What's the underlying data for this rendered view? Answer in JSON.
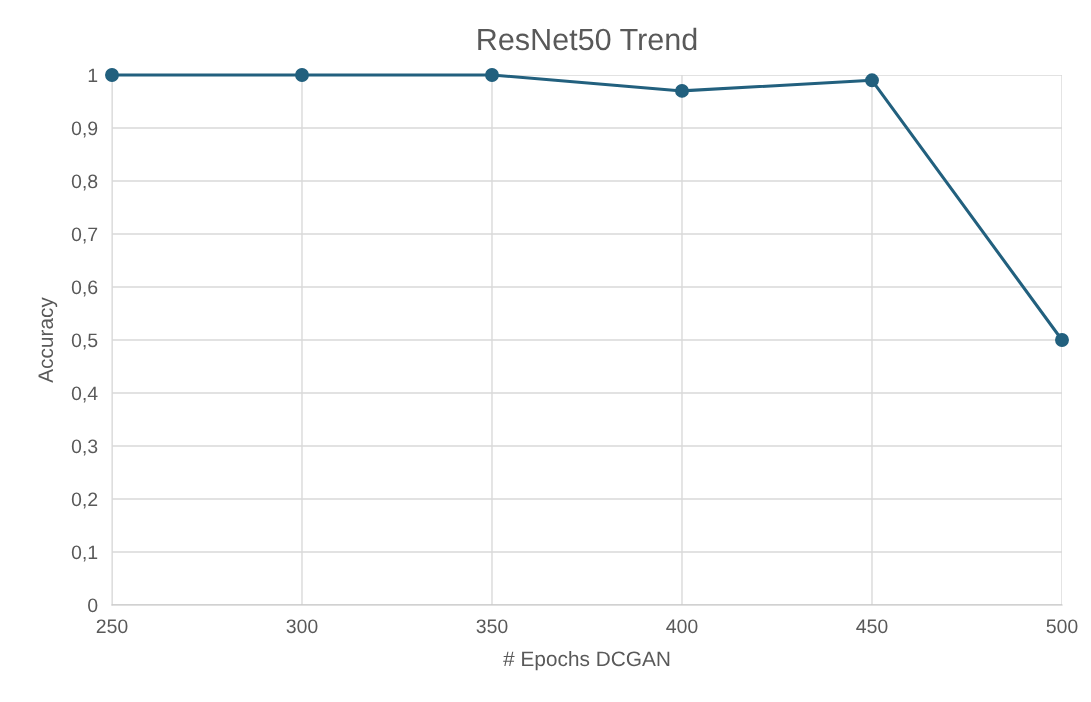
{
  "chart_data": {
    "type": "line",
    "title": "ResNet50 Trend",
    "xlabel": "# Epochs DCGAN",
    "ylabel": "Accuracy",
    "x": [
      250,
      300,
      350,
      400,
      450,
      500
    ],
    "series": [
      {
        "color": "#22607e",
        "values": [
          1,
          1,
          1,
          0.97,
          0.99,
          0.5
        ]
      }
    ],
    "xlim": [
      250,
      500
    ],
    "xticks": [
      250,
      300,
      350,
      400,
      450,
      500
    ],
    "ylim": [
      0,
      1
    ],
    "yticks": [
      0,
      {
        "value": 0.1,
        "label": "0,1"
      },
      {
        "value": 0.2,
        "label": "0,2"
      },
      {
        "value": 0.3,
        "label": "0,3"
      },
      {
        "value": 0.4,
        "label": "0,4"
      },
      {
        "value": 0.5,
        "label": "0,5"
      },
      {
        "value": 0.6,
        "label": "0,6"
      },
      {
        "value": 0.7,
        "label": "0,7"
      },
      {
        "value": 0.8,
        "label": "0,8"
      },
      {
        "value": 0.9,
        "label": "0,9"
      },
      1
    ],
    "grid": true,
    "marker": "circle",
    "line_style": "solid",
    "legend": false
  }
}
